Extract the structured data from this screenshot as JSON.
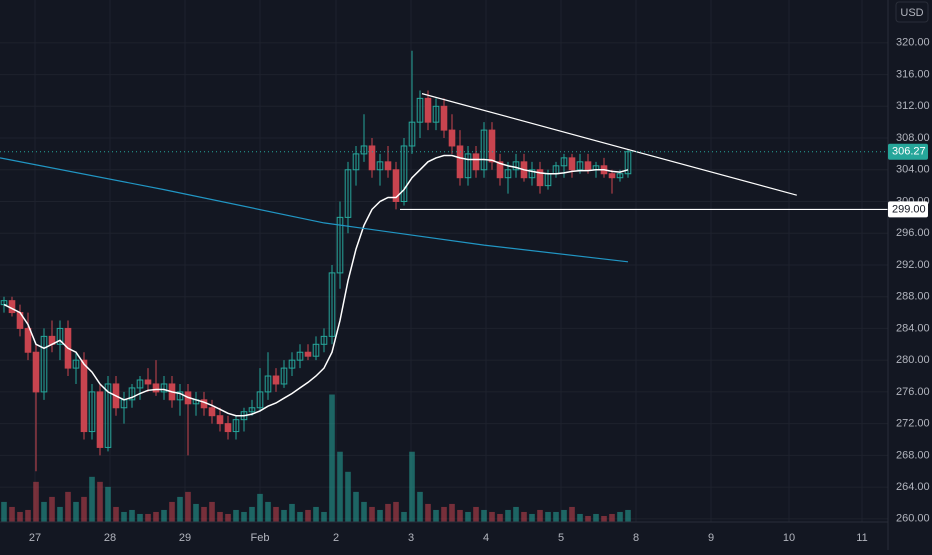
{
  "chart_data": {
    "type": "candlestick",
    "currency": "USD",
    "up_color": "#26a69a",
    "down_color": "#c8444f",
    "xlim": [
      -0.5,
      110.5
    ],
    "xticks": [
      {
        "value": 3.875,
        "label": "27"
      },
      {
        "value": 13.25,
        "label": "28"
      },
      {
        "value": 22.625,
        "label": "29"
      },
      {
        "value": 32,
        "label": "Feb"
      },
      {
        "value": 41.5,
        "label": "2"
      },
      {
        "value": 50.875,
        "label": "3"
      },
      {
        "value": 60.25,
        "label": "4"
      },
      {
        "value": 69.625,
        "label": "5"
      },
      {
        "value": 79,
        "label": "8"
      },
      {
        "value": 88.375,
        "label": "9"
      },
      {
        "value": 98.125,
        "label": "10"
      },
      {
        "value": 107.25,
        "label": "11"
      }
    ],
    "ylim": [
      259.6,
      325.4
    ],
    "yticks": [
      {
        "value": 260,
        "label": "260.00"
      },
      {
        "value": 264,
        "label": "264.00"
      },
      {
        "value": 268,
        "label": "268.00"
      },
      {
        "value": 272,
        "label": "272.00"
      },
      {
        "value": 276,
        "label": "276.00"
      },
      {
        "value": 280,
        "label": "280.00"
      },
      {
        "value": 284,
        "label": "284.00"
      },
      {
        "value": 288,
        "label": "288.00"
      },
      {
        "value": 292,
        "label": "292.00"
      },
      {
        "value": 296,
        "label": "296.00"
      },
      {
        "value": 300,
        "label": "300.00"
      },
      {
        "value": 304,
        "label": "304.00"
      },
      {
        "value": 308,
        "label": "308.00"
      },
      {
        "value": 312,
        "label": "312.00"
      },
      {
        "value": 316,
        "label": "316.00"
      },
      {
        "value": 320,
        "label": "320.00"
      }
    ],
    "grid": true,
    "open": [
      287,
      287.5,
      286,
      284,
      281,
      276,
      283,
      282,
      284,
      279,
      280,
      271,
      276,
      269,
      277,
      274,
      275,
      276.5,
      277.5,
      277,
      276,
      277,
      275,
      276,
      274.5,
      275,
      274,
      273,
      272,
      271,
      272.5,
      273.5,
      274,
      276,
      278,
      277,
      279,
      280,
      281,
      280.5,
      282,
      283,
      291,
      298,
      304,
      306,
      307,
      304,
      305,
      304,
      300,
      307,
      310,
      313,
      310,
      312,
      309,
      307,
      303,
      306,
      304,
      309,
      305,
      303,
      304,
      305,
      303,
      304,
      302,
      303.5,
      304.5,
      305.5,
      304,
      305,
      304,
      304.5,
      303.5,
      303,
      303.5
    ],
    "high": [
      288,
      288,
      287,
      286,
      282,
      284,
      285,
      285,
      285,
      281,
      281,
      277,
      277,
      278,
      278,
      276,
      277,
      278,
      279,
      280,
      278,
      278,
      277,
      277,
      276,
      276,
      275,
      274,
      273,
      273,
      274,
      275,
      279,
      281,
      279,
      280,
      281,
      282,
      282,
      283,
      284,
      292,
      300,
      305,
      307,
      311,
      308,
      306,
      307,
      305,
      308,
      319,
      314,
      314,
      313,
      313,
      311,
      309,
      307,
      307,
      310,
      310,
      306,
      305,
      306,
      306,
      305,
      305,
      304,
      305,
      306,
      306,
      306,
      306,
      305,
      305.5,
      304,
      304,
      306.5
    ],
    "low": [
      286,
      285.5,
      283,
      280,
      266,
      275,
      281,
      280,
      278,
      277,
      270,
      270,
      268,
      268.5,
      273,
      272,
      274,
      275,
      276,
      275.5,
      275,
      274,
      273,
      268,
      273,
      273,
      272,
      271,
      270,
      270,
      271,
      273,
      273.5,
      275,
      276,
      276.5,
      278,
      279,
      280,
      280,
      281,
      282,
      289,
      296,
      302,
      305,
      303,
      302,
      303,
      299,
      299.5,
      306,
      308,
      309,
      309,
      308,
      306,
      302,
      302,
      303,
      303,
      304,
      302,
      301,
      303,
      302.5,
      302,
      301,
      301.5,
      303,
      303,
      303,
      303.5,
      303.5,
      303,
      303,
      301,
      302.5,
      303
    ],
    "close": [
      287.5,
      286,
      284,
      281,
      276,
      283,
      282,
      284,
      279,
      280,
      271,
      276,
      269,
      277,
      274,
      275,
      276.5,
      277.5,
      277,
      276,
      277,
      275,
      276,
      274.5,
      275,
      274,
      273,
      272,
      271,
      272.5,
      273.5,
      274,
      276,
      278,
      277,
      279,
      280,
      281,
      280.5,
      282,
      283,
      291,
      298,
      304,
      306,
      307,
      304,
      305,
      304,
      300,
      307,
      310,
      313,
      310,
      312,
      309,
      307,
      303,
      306,
      304,
      309,
      305,
      303,
      304,
      305,
      303,
      304,
      302,
      303.5,
      304.5,
      305.5,
      304,
      305,
      304,
      304.5,
      303.5,
      303,
      303.5,
      306.27
    ],
    "volume_lim": [
      0,
      520
    ],
    "volume": [
      20,
      15,
      10,
      12,
      40,
      20,
      25,
      15,
      30,
      20,
      25,
      45,
      40,
      35,
      15,
      10,
      12,
      8,
      8,
      10,
      12,
      20,
      25,
      30,
      18,
      15,
      20,
      10,
      8,
      12,
      10,
      15,
      28,
      20,
      15,
      12,
      18,
      10,
      12,
      15,
      10,
      127,
      70,
      50,
      30,
      20,
      15,
      12,
      18,
      20,
      10,
      70,
      30,
      18,
      12,
      15,
      18,
      12,
      10,
      15,
      12,
      10,
      8,
      12,
      15,
      10,
      8,
      12,
      10,
      10,
      12,
      15,
      8,
      6,
      8,
      6,
      8,
      10,
      12
    ],
    "series": [
      {
        "color": "#ffffff",
        "values": [
          287,
          286.5,
          286,
          284.5,
          282,
          281.5,
          282,
          282.5,
          281.5,
          281,
          279.5,
          278.5,
          277,
          276,
          275.5,
          275,
          275.3,
          275.8,
          276.2,
          276.3,
          276.3,
          276,
          275.8,
          275.3,
          275,
          274.7,
          274.3,
          273.8,
          273.3,
          273,
          273,
          273.2,
          273.6,
          274.2,
          274.6,
          275.2,
          275.8,
          276.5,
          277.2,
          278,
          279,
          281,
          285,
          290,
          294,
          297,
          299,
          300,
          300.5,
          300.5,
          301.5,
          303,
          304,
          305,
          305.5,
          305.8,
          305.8,
          305.5,
          305.3,
          305.3,
          305.3,
          305.2,
          304.8,
          304.5,
          304.3,
          304,
          303.8,
          303.6,
          303.5,
          303.5,
          303.6,
          303.8,
          303.9,
          303.9,
          304,
          304,
          303.8,
          303.7,
          304
        ]
      },
      {
        "color": "#2196c4",
        "x": [
          -0.5,
          20,
          40,
          60,
          78
        ],
        "values": [
          305.5,
          301.5,
          297.3,
          294.5,
          292.4
        ]
      }
    ],
    "trendline": {
      "x": [
        52.25,
        99.1
      ],
      "values": [
        313.6,
        300.8
      ],
      "color": "#ffffff"
    },
    "hline": {
      "value": 299,
      "label": "299.00",
      "start": 49.5,
      "color": "#ffffff"
    }
  }
}
